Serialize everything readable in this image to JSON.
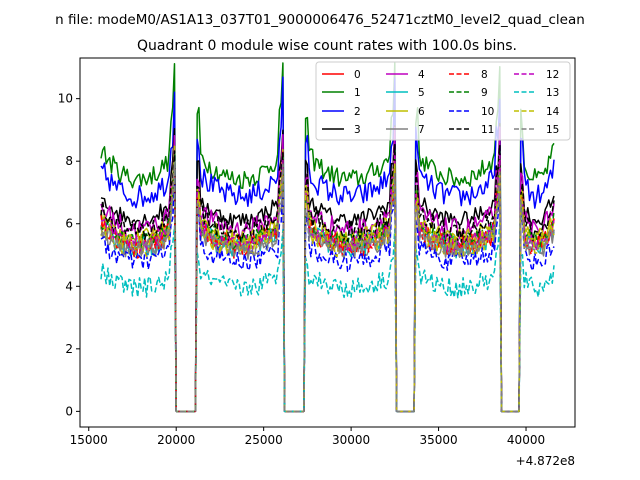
{
  "chart_data": {
    "type": "line",
    "suptitle": "n file: modeM0/AS1A13_037T01_9000006476_52471cztM0_level2_quad_clean",
    "title": "Quadrant 0 module wise count rates with 100.0s bins.",
    "xlabel": "",
    "ylabel": "",
    "x_offset_label": "+4.872e8",
    "xlim": [
      14500,
      42800
    ],
    "ylim": [
      -0.5,
      11.3
    ],
    "xticks": [
      15000,
      20000,
      25000,
      30000,
      35000,
      40000
    ],
    "yticks": [
      0,
      2,
      4,
      6,
      8,
      10
    ],
    "grid": false,
    "legend": {
      "placement": "top-right",
      "columns": 4
    },
    "x_range": [
      15700,
      41600
    ],
    "bin_width": 100,
    "gaps": [
      [
        20000,
        21100
      ],
      [
        26200,
        27300
      ],
      [
        32600,
        33600
      ],
      [
        38600,
        39600
      ]
    ],
    "series": [
      {
        "name": "0",
        "color": "#ff0000",
        "dash": false,
        "level": 5.7
      },
      {
        "name": "1",
        "color": "#008000",
        "dash": false,
        "level": 7.9
      },
      {
        "name": "2",
        "color": "#0000ff",
        "dash": false,
        "level": 7.3
      },
      {
        "name": "3",
        "color": "#000000",
        "dash": false,
        "level": 6.5
      },
      {
        "name": "4",
        "color": "#bf00bf",
        "dash": false,
        "level": 6.2
      },
      {
        "name": "5",
        "color": "#00bfbf",
        "dash": false,
        "level": 5.6
      },
      {
        "name": "6",
        "color": "#bfbf00",
        "dash": false,
        "level": 5.9
      },
      {
        "name": "7",
        "color": "#808080",
        "dash": false,
        "level": 5.5
      },
      {
        "name": "8",
        "color": "#ff0000",
        "dash": true,
        "level": 5.6
      },
      {
        "name": "9",
        "color": "#008000",
        "dash": true,
        "level": 5.8
      },
      {
        "name": "10",
        "color": "#0000ff",
        "dash": true,
        "level": 5.1
      },
      {
        "name": "11",
        "color": "#000000",
        "dash": true,
        "level": 6.1
      },
      {
        "name": "12",
        "color": "#bf00bf",
        "dash": true,
        "level": 5.7
      },
      {
        "name": "13",
        "color": "#00bfbf",
        "dash": true,
        "level": 4.2
      },
      {
        "name": "14",
        "color": "#bfbf00",
        "dash": true,
        "level": 5.6
      },
      {
        "name": "15",
        "color": "#808080",
        "dash": true,
        "level": 5.5
      }
    ]
  }
}
